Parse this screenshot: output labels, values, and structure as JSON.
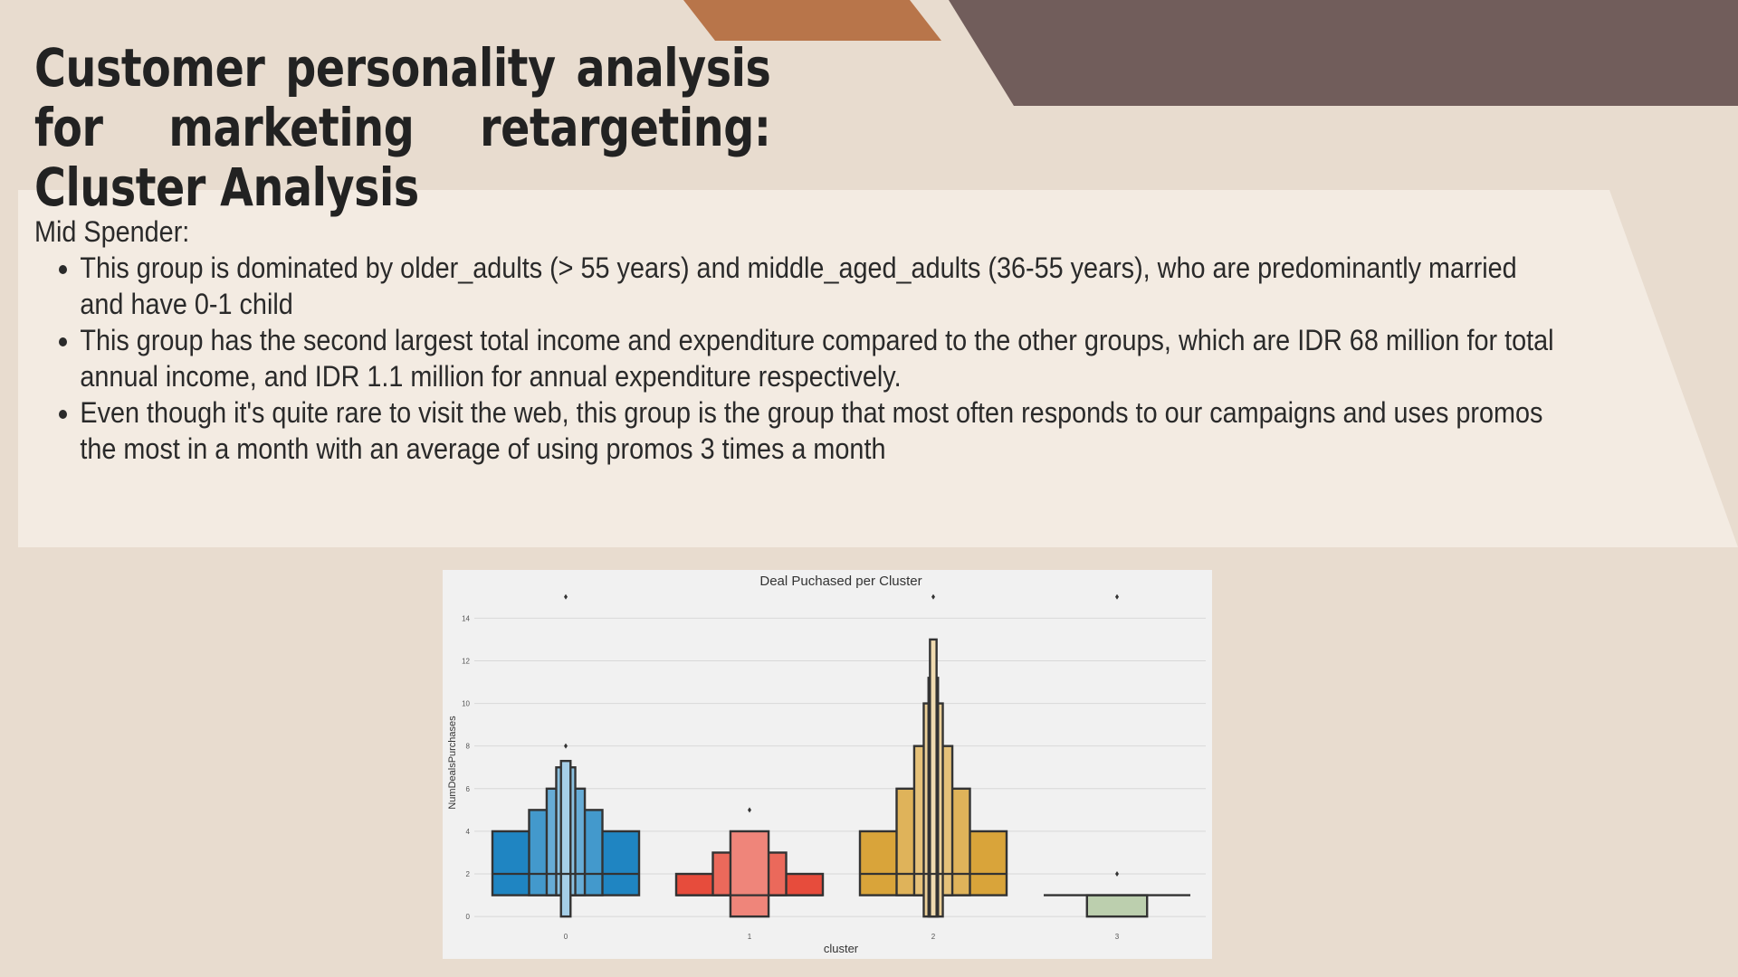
{
  "slide": {
    "title": "Customer personality analysis for marketing retargeting: Cluster Analysis",
    "colors": {
      "background": "#e8dccf",
      "panel": "#f3ebe2",
      "accent_orange": "#b8754a",
      "accent_brown": "#715d5b"
    }
  },
  "content": {
    "heading": "Mid Spender:",
    "bullets": [
      "This group is dominated by older_adults (> 55 years) and middle_aged_adults (36-55 years), who are predominantly married and have 0-1 child",
      "This group has the second largest total income and expenditure compared to the other groups, which are IDR 68 million for total annual income, and IDR 1.1 million for annual expenditure respectively.",
      "Even though it's quite rare to visit the web, this group is the group that most often responds to our campaigns and uses promos the most in a month with an average of using promos 3 times a month"
    ]
  },
  "chart_data": {
    "type": "boxenplot",
    "title": "Deal Puchased per Cluster",
    "xlabel": "cluster",
    "ylabel": "NumDealsPurchases",
    "categories": [
      "0",
      "1",
      "2",
      "3"
    ],
    "yticks": [
      0,
      2,
      4,
      6,
      8,
      10,
      12,
      14
    ],
    "ylim": [
      -0.8,
      15.5
    ],
    "grid": true,
    "series": [
      {
        "cluster": "0",
        "color": "#1f85c2",
        "median": 2,
        "boxes": [
          {
            "low": 1,
            "high": 4
          },
          {
            "low": 1,
            "high": 5
          },
          {
            "low": 1,
            "high": 6
          },
          {
            "low": 1,
            "high": 7
          },
          {
            "low": 0,
            "high": 7.3
          }
        ],
        "outliers": [
          8,
          15
        ]
      },
      {
        "cluster": "1",
        "color": "#e74c3c",
        "median": 1,
        "boxes": [
          {
            "low": 1,
            "high": 2
          },
          {
            "low": 1,
            "high": 3
          },
          {
            "low": 0,
            "high": 4
          }
        ],
        "outliers": [
          5
        ]
      },
      {
        "cluster": "2",
        "color": "#d9a43a",
        "median": 2,
        "boxes": [
          {
            "low": 1,
            "high": 4
          },
          {
            "low": 1,
            "high": 6
          },
          {
            "low": 1,
            "high": 8
          },
          {
            "low": 0,
            "high": 10
          },
          {
            "low": 0,
            "high": 11.2
          },
          {
            "low": 0,
            "high": 13
          }
        ],
        "outliers": [
          15
        ]
      },
      {
        "cluster": "3",
        "color": "#bccfae",
        "median": 1,
        "boxes": [
          {
            "low": 0,
            "high": 1
          }
        ],
        "outliers": [
          2,
          15
        ]
      }
    ]
  }
}
